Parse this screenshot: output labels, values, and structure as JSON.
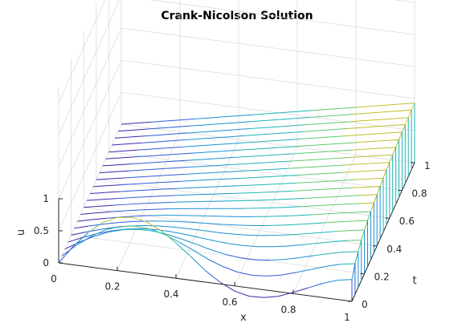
{
  "chart_data": {
    "type": "mesh3d",
    "title": "Crank-Nicolson Solution",
    "xlabel": "x",
    "ylabel": "t",
    "zlabel": "u",
    "xlim": [
      0,
      1
    ],
    "ylim": [
      0,
      1
    ],
    "zlim": [
      0,
      1
    ],
    "x_ticks": [
      "0",
      "0.2",
      "0.4",
      "0.6",
      "0.8",
      "1"
    ],
    "y_ticks": [
      "0",
      "0.2",
      "0.4",
      "0.6",
      "0.8",
      "1"
    ],
    "z_ticks": [
      "0",
      "0.5",
      "1"
    ],
    "x": [
      0,
      0.05,
      0.1,
      0.15,
      0.2,
      0.25,
      0.3,
      0.35,
      0.4,
      0.45,
      0.5,
      0.55,
      0.6,
      0.65,
      0.7,
      0.75,
      0.8,
      0.85,
      0.9,
      0.95,
      1.0
    ],
    "t": [
      0,
      0.05,
      0.1,
      0.15,
      0.2,
      0.25,
      0.3,
      0.35,
      0.4,
      0.45,
      0.5,
      0.55,
      0.6,
      0.65,
      0.7,
      0.75,
      0.8,
      0.85,
      0.9,
      0.95,
      1.0
    ],
    "initial_condition_u": [
      0,
      0.29,
      0.53,
      0.72,
      0.83,
      0.86,
      0.82,
      0.71,
      0.55,
      0.37,
      0.18,
      0.03,
      -0.08,
      -0.13,
      -0.12,
      -0.07,
      0.02,
      0.12,
      0.22,
      0.3,
      0.34
    ],
    "boundary_u_at_x0": 0,
    "boundary_u_at_x1": [
      0.34,
      0.48,
      0.56,
      0.63,
      0.68,
      0.72,
      0.75,
      0.78,
      0.8,
      0.82,
      0.84,
      0.86,
      0.87,
      0.88,
      0.89,
      0.9,
      0.91,
      0.92,
      0.92,
      0.93,
      0.93
    ],
    "colormap": [
      "#3e26a8",
      "#2e5bd9",
      "#1a8fd3",
      "#1cb3b7",
      "#5cc86c",
      "#bdbd26",
      "#f7c73a"
    ],
    "grid": true
  }
}
